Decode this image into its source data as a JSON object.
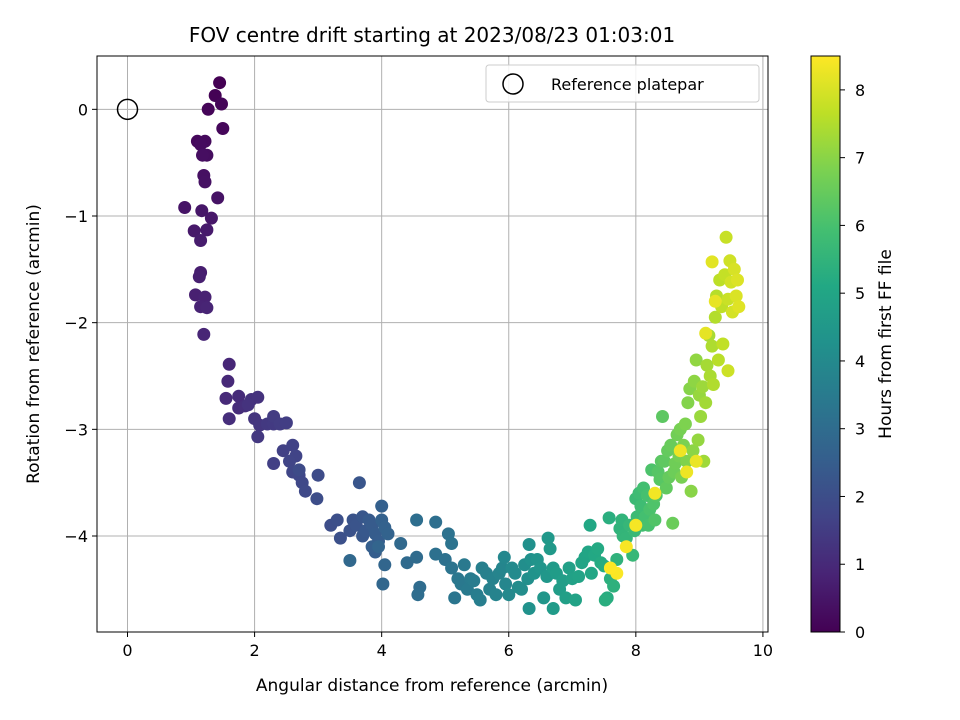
{
  "chart_data": {
    "type": "scatter",
    "title": "FOV centre drift starting at 2023/08/23 01:03:01",
    "xlabel": "Angular distance from reference (arcmin)",
    "ylabel": "Rotation from reference (arcmin)",
    "colorbar_label": "Hours from first FF file",
    "colormap": "viridis",
    "xlim": [
      -0.48,
      10.08
    ],
    "ylim": [
      -4.9,
      0.5
    ],
    "clim": [
      0,
      8.5
    ],
    "xticks": [
      0,
      2,
      4,
      6,
      8,
      10
    ],
    "xtick_labels": [
      "0",
      "2",
      "4",
      "6",
      "8",
      "10"
    ],
    "yticks": [
      0,
      -1,
      -2,
      -3,
      -4
    ],
    "ytick_labels": [
      "0",
      "−1",
      "−2",
      "−3",
      "−4"
    ],
    "cticks": [
      0,
      1,
      2,
      3,
      4,
      5,
      6,
      7,
      8
    ],
    "ctick_labels": [
      "0",
      "1",
      "2",
      "3",
      "4",
      "5",
      "6",
      "7",
      "8"
    ],
    "grid": true,
    "legend": {
      "position": "top-right",
      "entries": [
        "Reference platepar"
      ]
    },
    "reference": {
      "x": 0,
      "y": 0,
      "label": "Reference platepar"
    },
    "points": [
      [
        1.45,
        0.25
      ],
      [
        1.38,
        0.13
      ],
      [
        1.48,
        0.05
      ],
      [
        1.27,
        0.0
      ],
      [
        1.5,
        -0.18
      ],
      [
        1.1,
        -0.3
      ],
      [
        1.22,
        -0.3
      ],
      [
        1.15,
        -0.33
      ],
      [
        1.25,
        -0.43
      ],
      [
        1.18,
        -0.43
      ],
      [
        1.2,
        -0.62
      ],
      [
        1.22,
        -0.68
      ],
      [
        1.42,
        -0.83
      ],
      [
        0.9,
        -0.92
      ],
      [
        1.17,
        -0.95
      ],
      [
        1.32,
        -1.02
      ],
      [
        1.05,
        -1.14
      ],
      [
        1.25,
        -1.13
      ],
      [
        1.15,
        -1.23
      ],
      [
        1.15,
        -1.53
      ],
      [
        1.13,
        -1.57
      ],
      [
        1.07,
        -1.74
      ],
      [
        1.22,
        -1.76
      ],
      [
        1.15,
        -1.85
      ],
      [
        1.25,
        -1.86
      ],
      [
        1.2,
        -2.11
      ],
      [
        1.6,
        -2.39
      ],
      [
        1.58,
        -2.55
      ],
      [
        1.55,
        -2.71
      ],
      [
        1.75,
        -2.69
      ],
      [
        1.75,
        -2.8
      ],
      [
        1.6,
        -2.9
      ],
      [
        1.85,
        -2.78
      ],
      [
        1.95,
        -2.72
      ],
      [
        2.05,
        -2.7
      ],
      [
        1.9,
        -2.77
      ],
      [
        2.0,
        -2.9
      ],
      [
        2.08,
        -2.96
      ],
      [
        2.05,
        -3.07
      ],
      [
        2.2,
        -2.95
      ],
      [
        2.3,
        -2.95
      ],
      [
        2.3,
        -2.88
      ],
      [
        2.4,
        -2.95
      ],
      [
        2.5,
        -2.94
      ],
      [
        2.3,
        -3.32
      ],
      [
        2.45,
        -3.2
      ],
      [
        2.6,
        -3.15
      ],
      [
        2.65,
        -3.25
      ],
      [
        2.55,
        -3.3
      ],
      [
        2.6,
        -3.4
      ],
      [
        2.7,
        -3.43
      ],
      [
        2.75,
        -3.5
      ],
      [
        2.8,
        -3.58
      ],
      [
        2.7,
        -3.38
      ],
      [
        3.0,
        -3.43
      ],
      [
        2.98,
        -3.65
      ],
      [
        3.2,
        -3.9
      ],
      [
        3.3,
        -3.85
      ],
      [
        3.35,
        -4.02
      ],
      [
        3.5,
        -3.95
      ],
      [
        3.55,
        -3.85
      ],
      [
        3.6,
        -3.9
      ],
      [
        3.65,
        -3.5
      ],
      [
        3.7,
        -3.82
      ],
      [
        3.7,
        -4.0
      ],
      [
        3.75,
        -3.95
      ],
      [
        3.8,
        -3.85
      ],
      [
        3.85,
        -3.9
      ],
      [
        3.9,
        -3.98
      ],
      [
        3.95,
        -4.05
      ],
      [
        3.9,
        -4.15
      ],
      [
        3.85,
        -4.1
      ],
      [
        4.0,
        -3.72
      ],
      [
        4.0,
        -3.85
      ],
      [
        4.05,
        -3.92
      ],
      [
        4.1,
        -3.98
      ],
      [
        3.95,
        -4.1
      ],
      [
        4.05,
        -4.27
      ],
      [
        4.02,
        -4.45
      ],
      [
        3.5,
        -4.23
      ],
      [
        4.3,
        -4.07
      ],
      [
        4.4,
        -4.25
      ],
      [
        4.55,
        -4.2
      ],
      [
        4.6,
        -4.48
      ],
      [
        4.57,
        -4.55
      ],
      [
        4.55,
        -3.85
      ],
      [
        4.85,
        -3.87
      ],
      [
        4.85,
        -4.17
      ],
      [
        5.0,
        -4.22
      ],
      [
        5.05,
        -3.98
      ],
      [
        5.1,
        -4.07
      ],
      [
        5.1,
        -4.3
      ],
      [
        5.15,
        -4.58
      ],
      [
        5.2,
        -4.4
      ],
      [
        5.25,
        -4.45
      ],
      [
        5.3,
        -4.27
      ],
      [
        5.35,
        -4.5
      ],
      [
        5.4,
        -4.4
      ],
      [
        5.45,
        -4.42
      ],
      [
        5.5,
        -4.55
      ],
      [
        5.55,
        -4.6
      ],
      [
        5.58,
        -4.3
      ],
      [
        5.65,
        -4.35
      ],
      [
        5.7,
        -4.5
      ],
      [
        5.75,
        -4.4
      ],
      [
        5.8,
        -4.55
      ],
      [
        5.85,
        -4.35
      ],
      [
        5.9,
        -4.3
      ],
      [
        5.95,
        -4.45
      ],
      [
        5.93,
        -4.2
      ],
      [
        6.0,
        -4.55
      ],
      [
        6.05,
        -4.3
      ],
      [
        6.1,
        -4.35
      ],
      [
        6.15,
        -4.48
      ],
      [
        6.2,
        -4.5
      ],
      [
        6.25,
        -4.27
      ],
      [
        6.3,
        -4.4
      ],
      [
        6.32,
        -4.08
      ],
      [
        6.35,
        -4.22
      ],
      [
        6.32,
        -4.68
      ],
      [
        6.4,
        -4.35
      ],
      [
        6.45,
        -4.22
      ],
      [
        6.5,
        -4.3
      ],
      [
        6.55,
        -4.58
      ],
      [
        6.6,
        -4.38
      ],
      [
        6.62,
        -4.02
      ],
      [
        6.65,
        -4.12
      ],
      [
        6.7,
        -4.3
      ],
      [
        6.7,
        -4.68
      ],
      [
        6.75,
        -4.35
      ],
      [
        6.8,
        -4.5
      ],
      [
        6.85,
        -4.42
      ],
      [
        6.9,
        -4.58
      ],
      [
        6.95,
        -4.3
      ],
      [
        7.0,
        -4.4
      ],
      [
        7.05,
        -4.6
      ],
      [
        7.1,
        -4.38
      ],
      [
        7.15,
        -4.25
      ],
      [
        7.2,
        -4.2
      ],
      [
        7.25,
        -4.15
      ],
      [
        7.3,
        -4.35
      ],
      [
        7.28,
        -3.9
      ],
      [
        7.35,
        -4.18
      ],
      [
        7.4,
        -4.12
      ],
      [
        7.45,
        -4.25
      ],
      [
        7.5,
        -4.28
      ],
      [
        7.55,
        -4.58
      ],
      [
        7.52,
        -4.6
      ],
      [
        7.58,
        -3.83
      ],
      [
        7.6,
        -4.4
      ],
      [
        7.65,
        -4.47
      ],
      [
        7.7,
        -4.22
      ],
      [
        7.75,
        -3.93
      ],
      [
        7.78,
        -3.85
      ],
      [
        7.8,
        -4.0
      ],
      [
        7.85,
        -4.02
      ],
      [
        7.9,
        -3.9
      ],
      [
        7.95,
        -4.18
      ],
      [
        7.98,
        -3.95
      ],
      [
        8.0,
        -3.65
      ],
      [
        8.02,
        -3.82
      ],
      [
        8.05,
        -3.6
      ],
      [
        8.08,
        -3.72
      ],
      [
        8.1,
        -3.9
      ],
      [
        8.12,
        -3.55
      ],
      [
        8.15,
        -3.82
      ],
      [
        8.18,
        -3.62
      ],
      [
        8.2,
        -3.9
      ],
      [
        8.22,
        -3.75
      ],
      [
        8.25,
        -3.38
      ],
      [
        8.28,
        -3.7
      ],
      [
        8.3,
        -3.85
      ],
      [
        8.32,
        -3.62
      ],
      [
        8.35,
        -3.4
      ],
      [
        8.38,
        -3.47
      ],
      [
        8.4,
        -3.3
      ],
      [
        8.42,
        -2.88
      ],
      [
        8.45,
        -3.3
      ],
      [
        8.48,
        -3.55
      ],
      [
        8.5,
        -3.2
      ],
      [
        8.52,
        -3.45
      ],
      [
        8.55,
        -3.15
      ],
      [
        8.58,
        -3.88
      ],
      [
        8.6,
        -3.4
      ],
      [
        8.62,
        -3.32
      ],
      [
        8.65,
        -3.05
      ],
      [
        8.68,
        -3.25
      ],
      [
        8.7,
        -3.0
      ],
      [
        8.72,
        -3.45
      ],
      [
        8.75,
        -3.15
      ],
      [
        8.78,
        -2.95
      ],
      [
        8.8,
        -3.3
      ],
      [
        8.82,
        -2.75
      ],
      [
        8.85,
        -2.62
      ],
      [
        8.87,
        -3.58
      ],
      [
        8.9,
        -3.2
      ],
      [
        8.92,
        -2.55
      ],
      [
        8.95,
        -2.35
      ],
      [
        8.98,
        -3.1
      ],
      [
        9.0,
        -2.68
      ],
      [
        9.02,
        -2.88
      ],
      [
        9.05,
        -2.6
      ],
      [
        9.07,
        -3.3
      ],
      [
        9.1,
        -2.75
      ],
      [
        9.12,
        -2.4
      ],
      [
        9.15,
        -2.12
      ],
      [
        9.17,
        -2.5
      ],
      [
        9.2,
        -2.22
      ],
      [
        9.22,
        -2.58
      ],
      [
        9.25,
        -1.95
      ],
      [
        9.27,
        -1.75
      ],
      [
        9.3,
        -2.35
      ],
      [
        9.32,
        -1.6
      ],
      [
        9.35,
        -1.85
      ],
      [
        9.37,
        -2.2
      ],
      [
        9.4,
        -1.55
      ],
      [
        9.42,
        -1.2
      ],
      [
        9.45,
        -1.78
      ],
      [
        9.45,
        -2.45
      ],
      [
        9.48,
        -1.42
      ],
      [
        9.5,
        -1.62
      ],
      [
        9.52,
        -1.9
      ],
      [
        9.55,
        -1.5
      ],
      [
        9.58,
        -1.75
      ],
      [
        9.6,
        -1.6
      ],
      [
        9.62,
        -1.85
      ],
      [
        9.2,
        -1.43
      ],
      [
        9.1,
        -2.1
      ],
      [
        9.25,
        -1.8
      ],
      [
        8.95,
        -3.3
      ],
      [
        8.8,
        -3.4
      ],
      [
        8.7,
        -3.2
      ],
      [
        8.3,
        -3.6
      ],
      [
        8.0,
        -3.9
      ],
      [
        7.85,
        -4.1
      ],
      [
        7.7,
        -4.35
      ],
      [
        7.6,
        -4.3
      ]
    ]
  },
  "legend_label": "Reference platepar"
}
